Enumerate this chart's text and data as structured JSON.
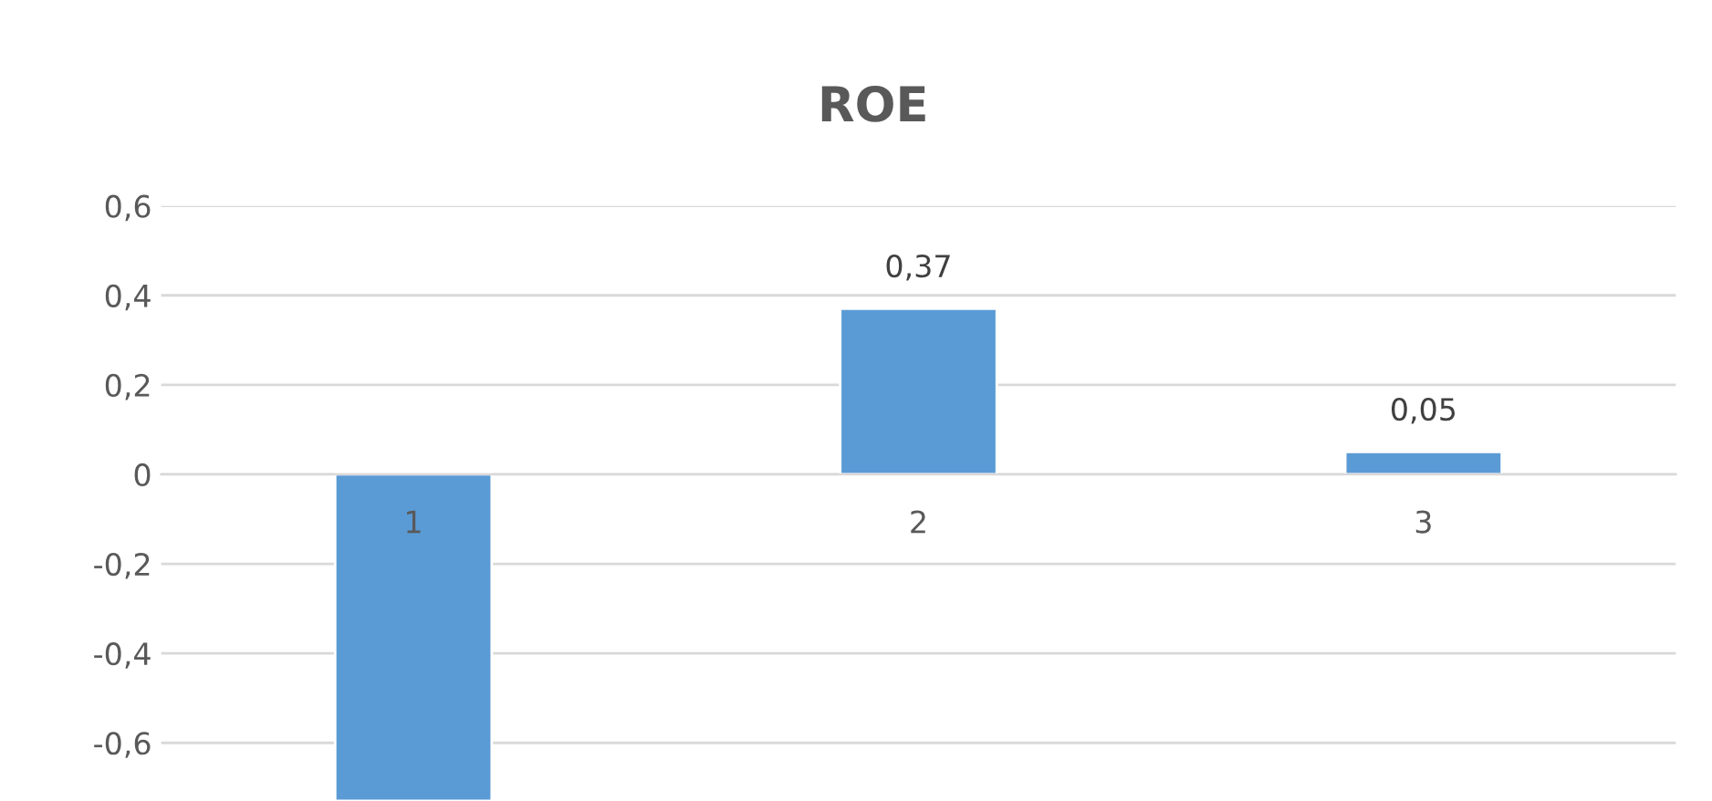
{
  "chart_data": {
    "type": "bar",
    "title": "ROE",
    "categories": [
      "1",
      "2",
      "3"
    ],
    "values": [
      -0.73,
      0.37,
      0.05
    ],
    "value_labels": [
      null,
      "0,37",
      "0,05"
    ],
    "color": "#5b9bd5",
    "ylim": [
      -0.73,
      0.6
    ],
    "yticks": [
      {
        "value": -0.6,
        "label": "-0,6"
      },
      {
        "value": -0.4,
        "label": "-0,4"
      },
      {
        "value": -0.2,
        "label": "-0,2"
      },
      0,
      {
        "value": 0.2,
        "label": "0,2"
      },
      {
        "value": 0.4,
        "label": "0,4"
      },
      {
        "value": 0.6,
        "label": "0,6"
      }
    ],
    "grid": "y",
    "legend": false
  }
}
